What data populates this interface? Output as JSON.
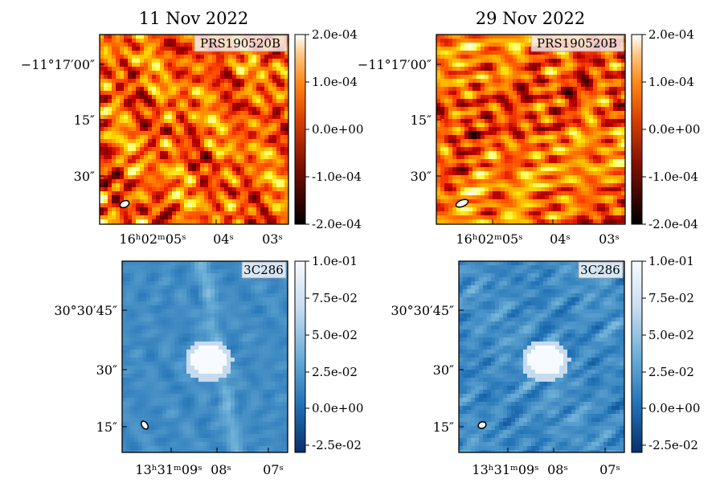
{
  "chart_data": [
    {
      "type": "heatmap",
      "panel": "top-left",
      "title": "11 Nov 2022",
      "source_label": "PRS190520B",
      "colormap": "gist_heat",
      "y_ticks": [
        "−11°17′00″",
        "15″",
        "30″"
      ],
      "x_ticks": [
        "16ʰ02ᵐ05ˢ",
        "04ˢ",
        "03ˢ"
      ],
      "colorbar_ticks": [
        "2.0e-04",
        "1.0e-04",
        "0.0e+00",
        "-1.0e-04",
        "-2.0e-04"
      ],
      "colorbar_range": [
        -0.0002,
        0.0002
      ],
      "beam_shape": "ellipse",
      "seed": 11
    },
    {
      "type": "heatmap",
      "panel": "top-right",
      "title": "29 Nov 2022",
      "source_label": "PRS190520B",
      "colormap": "gist_heat",
      "y_ticks": [
        "−11°17′00″",
        "15″",
        "30″"
      ],
      "x_ticks": [
        "16ʰ02ᵐ05ˢ",
        "04ˢ",
        "03ˢ"
      ],
      "colorbar_ticks": [
        "2.0e-04",
        "1.0e-04",
        "0.0e+00",
        "-1.0e-04",
        "-2.0e-04"
      ],
      "colorbar_range": [
        -0.0002,
        0.0002
      ],
      "beam_shape": "ellipse",
      "seed": 29
    },
    {
      "type": "heatmap",
      "panel": "bottom-left",
      "title": "",
      "source_label": "3C286",
      "colormap": "Blues_r",
      "y_ticks": [
        "30°30′45″",
        "30″",
        "15″"
      ],
      "x_ticks": [
        "13ʰ31ᵐ09ˢ",
        "08ˢ",
        "07ˢ"
      ],
      "colorbar_ticks": [
        "1.0e-01",
        "7.5e-02",
        "5.0e-02",
        "2.5e-02",
        "0.0e+00",
        "-2.5e-02"
      ],
      "colorbar_range": [
        -0.03,
        0.1
      ],
      "beam_shape": "ellipse",
      "seed": 5
    },
    {
      "type": "heatmap",
      "panel": "bottom-right",
      "title": "",
      "source_label": "3C286",
      "colormap": "Blues_r",
      "y_ticks": [
        "30°30′45″",
        "30″",
        "15″"
      ],
      "x_ticks": [
        "13ʰ31ᵐ09ˢ",
        "08ˢ",
        "07ˢ"
      ],
      "colorbar_ticks": [
        "1.0e-01",
        "7.5e-02",
        "5.0e-02",
        "2.5e-02",
        "0.0e+00",
        "-2.5e-02"
      ],
      "colorbar_range": [
        -0.03,
        0.1
      ],
      "beam_shape": "ellipse",
      "seed": 17
    }
  ]
}
